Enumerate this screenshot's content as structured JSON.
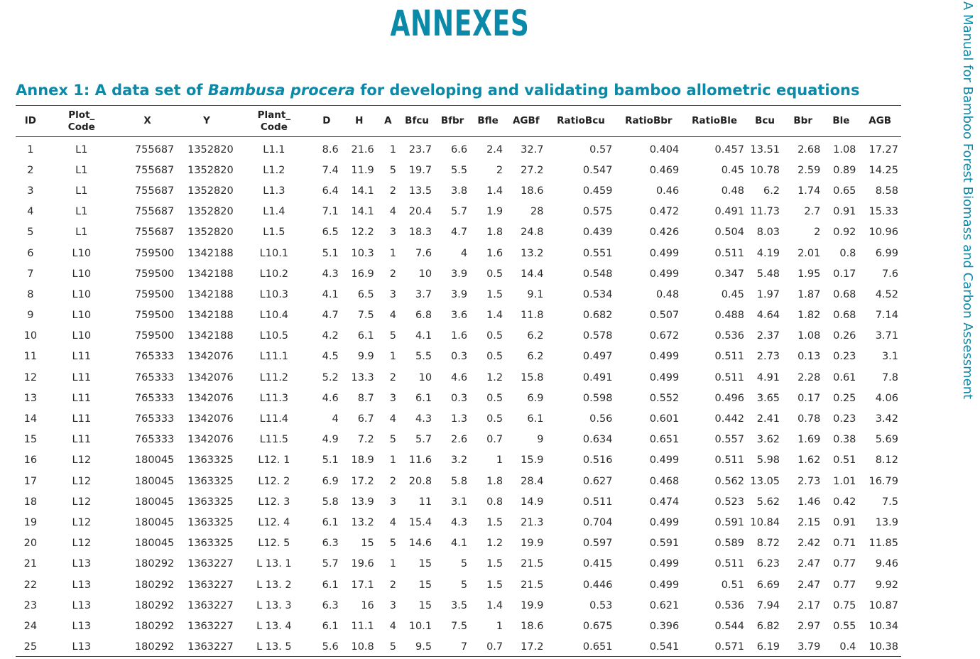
{
  "page_title": "ANNEXES",
  "side_title": "A Manual for Bamboo Forest Biomass and Carbon Assessment",
  "annex": {
    "prefix": "Annex 1: A data set of ",
    "species": "Bambusa procera",
    "suffix": " for developing and validating bamboo allometric equations"
  },
  "columns": [
    {
      "line1": "ID",
      "line2": ""
    },
    {
      "line1": "Plot_",
      "line2": "Code"
    },
    {
      "line1": "X",
      "line2": ""
    },
    {
      "line1": "Y",
      "line2": ""
    },
    {
      "line1": "Plant_",
      "line2": "Code"
    },
    {
      "line1": "D",
      "line2": ""
    },
    {
      "line1": "H",
      "line2": ""
    },
    {
      "line1": "A",
      "line2": ""
    },
    {
      "line1": "Bfcu",
      "line2": ""
    },
    {
      "line1": "Bfbr",
      "line2": ""
    },
    {
      "line1": "Bfle",
      "line2": ""
    },
    {
      "line1": "AGBf",
      "line2": ""
    },
    {
      "line1": "RatioBcu",
      "line2": ""
    },
    {
      "line1": "RatioBbr",
      "line2": ""
    },
    {
      "line1": "RatioBle",
      "line2": ""
    },
    {
      "line1": "Bcu",
      "line2": ""
    },
    {
      "line1": "Bbr",
      "line2": ""
    },
    {
      "line1": "Ble",
      "line2": ""
    },
    {
      "line1": "AGB",
      "line2": ""
    }
  ],
  "rows": [
    [
      "1",
      "L1",
      "755687",
      "1352820",
      "L1.1",
      "8.6",
      "21.6",
      "1",
      "23.7",
      "6.6",
      "2.4",
      "32.7",
      "0.57",
      "0.404",
      "0.457",
      "13.51",
      "2.68",
      "1.08",
      "17.27"
    ],
    [
      "2",
      "L1",
      "755687",
      "1352820",
      "L1.2",
      "7.4",
      "11.9",
      "5",
      "19.7",
      "5.5",
      "2",
      "27.2",
      "0.547",
      "0.469",
      "0.45",
      "10.78",
      "2.59",
      "0.89",
      "14.25"
    ],
    [
      "3",
      "L1",
      "755687",
      "1352820",
      "L1.3",
      "6.4",
      "14.1",
      "2",
      "13.5",
      "3.8",
      "1.4",
      "18.6",
      "0.459",
      "0.46",
      "0.48",
      "6.2",
      "1.74",
      "0.65",
      "8.58"
    ],
    [
      "4",
      "L1",
      "755687",
      "1352820",
      "L1.4",
      "7.1",
      "14.1",
      "4",
      "20.4",
      "5.7",
      "1.9",
      "28",
      "0.575",
      "0.472",
      "0.491",
      "11.73",
      "2.7",
      "0.91",
      "15.33"
    ],
    [
      "5",
      "L1",
      "755687",
      "1352820",
      "L1.5",
      "6.5",
      "12.2",
      "3",
      "18.3",
      "4.7",
      "1.8",
      "24.8",
      "0.439",
      "0.426",
      "0.504",
      "8.03",
      "2",
      "0.92",
      "10.96"
    ],
    [
      "6",
      "L10",
      "759500",
      "1342188",
      "L10.1",
      "5.1",
      "10.3",
      "1",
      "7.6",
      "4",
      "1.6",
      "13.2",
      "0.551",
      "0.499",
      "0.511",
      "4.19",
      "2.01",
      "0.8",
      "6.99"
    ],
    [
      "7",
      "L10",
      "759500",
      "1342188",
      "L10.2",
      "4.3",
      "16.9",
      "2",
      "10",
      "3.9",
      "0.5",
      "14.4",
      "0.548",
      "0.499",
      "0.347",
      "5.48",
      "1.95",
      "0.17",
      "7.6"
    ],
    [
      "8",
      "L10",
      "759500",
      "1342188",
      "L10.3",
      "4.1",
      "6.5",
      "3",
      "3.7",
      "3.9",
      "1.5",
      "9.1",
      "0.534",
      "0.48",
      "0.45",
      "1.97",
      "1.87",
      "0.68",
      "4.52"
    ],
    [
      "9",
      "L10",
      "759500",
      "1342188",
      "L10.4",
      "4.7",
      "7.5",
      "4",
      "6.8",
      "3.6",
      "1.4",
      "11.8",
      "0.682",
      "0.507",
      "0.488",
      "4.64",
      "1.82",
      "0.68",
      "7.14"
    ],
    [
      "10",
      "L10",
      "759500",
      "1342188",
      "L10.5",
      "4.2",
      "6.1",
      "5",
      "4.1",
      "1.6",
      "0.5",
      "6.2",
      "0.578",
      "0.672",
      "0.536",
      "2.37",
      "1.08",
      "0.26",
      "3.71"
    ],
    [
      "11",
      "L11",
      "765333",
      "1342076",
      "L11.1",
      "4.5",
      "9.9",
      "1",
      "5.5",
      "0.3",
      "0.5",
      "6.2",
      "0.497",
      "0.499",
      "0.511",
      "2.73",
      "0.13",
      "0.23",
      "3.1"
    ],
    [
      "12",
      "L11",
      "765333",
      "1342076",
      "L11.2",
      "5.2",
      "13.3",
      "2",
      "10",
      "4.6",
      "1.2",
      "15.8",
      "0.491",
      "0.499",
      "0.511",
      "4.91",
      "2.28",
      "0.61",
      "7.8"
    ],
    [
      "13",
      "L11",
      "765333",
      "1342076",
      "L11.3",
      "4.6",
      "8.7",
      "3",
      "6.1",
      "0.3",
      "0.5",
      "6.9",
      "0.598",
      "0.552",
      "0.496",
      "3.65",
      "0.17",
      "0.25",
      "4.06"
    ],
    [
      "14",
      "L11",
      "765333",
      "1342076",
      "L11.4",
      "4",
      "6.7",
      "4",
      "4.3",
      "1.3",
      "0.5",
      "6.1",
      "0.56",
      "0.601",
      "0.442",
      "2.41",
      "0.78",
      "0.23",
      "3.42"
    ],
    [
      "15",
      "L11",
      "765333",
      "1342076",
      "L11.5",
      "4.9",
      "7.2",
      "5",
      "5.7",
      "2.6",
      "0.7",
      "9",
      "0.634",
      "0.651",
      "0.557",
      "3.62",
      "1.69",
      "0.38",
      "5.69"
    ],
    [
      "16",
      "L12",
      "180045",
      "1363325",
      "L12. 1",
      "5.1",
      "18.9",
      "1",
      "11.6",
      "3.2",
      "1",
      "15.9",
      "0.516",
      "0.499",
      "0.511",
      "5.98",
      "1.62",
      "0.51",
      "8.12"
    ],
    [
      "17",
      "L12",
      "180045",
      "1363325",
      "L12. 2",
      "6.9",
      "17.2",
      "2",
      "20.8",
      "5.8",
      "1.8",
      "28.4",
      "0.627",
      "0.468",
      "0.562",
      "13.05",
      "2.73",
      "1.01",
      "16.79"
    ],
    [
      "18",
      "L12",
      "180045",
      "1363325",
      "L12. 3",
      "5.8",
      "13.9",
      "3",
      "11",
      "3.1",
      "0.8",
      "14.9",
      "0.511",
      "0.474",
      "0.523",
      "5.62",
      "1.46",
      "0.42",
      "7.5"
    ],
    [
      "19",
      "L12",
      "180045",
      "1363325",
      "L12. 4",
      "6.1",
      "13.2",
      "4",
      "15.4",
      "4.3",
      "1.5",
      "21.3",
      "0.704",
      "0.499",
      "0.591",
      "10.84",
      "2.15",
      "0.91",
      "13.9"
    ],
    [
      "20",
      "L12",
      "180045",
      "1363325",
      "L12. 5",
      "6.3",
      "15",
      "5",
      "14.6",
      "4.1",
      "1.2",
      "19.9",
      "0.597",
      "0.591",
      "0.589",
      "8.72",
      "2.42",
      "0.71",
      "11.85"
    ],
    [
      "21",
      "L13",
      "180292",
      "1363227",
      "L 13. 1",
      "5.7",
      "19.6",
      "1",
      "15",
      "5",
      "1.5",
      "21.5",
      "0.415",
      "0.499",
      "0.511",
      "6.23",
      "2.47",
      "0.77",
      "9.46"
    ],
    [
      "22",
      "L13",
      "180292",
      "1363227",
      "L 13. 2",
      "6.1",
      "17.1",
      "2",
      "15",
      "5",
      "1.5",
      "21.5",
      "0.446",
      "0.499",
      "0.51",
      "6.69",
      "2.47",
      "0.77",
      "9.92"
    ],
    [
      "23",
      "L13",
      "180292",
      "1363227",
      "L 13. 3",
      "6.3",
      "16",
      "3",
      "15",
      "3.5",
      "1.4",
      "19.9",
      "0.53",
      "0.621",
      "0.536",
      "7.94",
      "2.17",
      "0.75",
      "10.87"
    ],
    [
      "24",
      "L13",
      "180292",
      "1363227",
      "L 13. 4",
      "6.1",
      "11.1",
      "4",
      "10.1",
      "7.5",
      "1",
      "18.6",
      "0.675",
      "0.396",
      "0.544",
      "6.82",
      "2.97",
      "0.55",
      "10.34"
    ],
    [
      "25",
      "L13",
      "180292",
      "1363227",
      "L 13. 5",
      "5.6",
      "10.8",
      "5",
      "9.5",
      "7",
      "0.7",
      "17.2",
      "0.651",
      "0.541",
      "0.571",
      "6.19",
      "3.79",
      "0.4",
      "10.38"
    ]
  ]
}
